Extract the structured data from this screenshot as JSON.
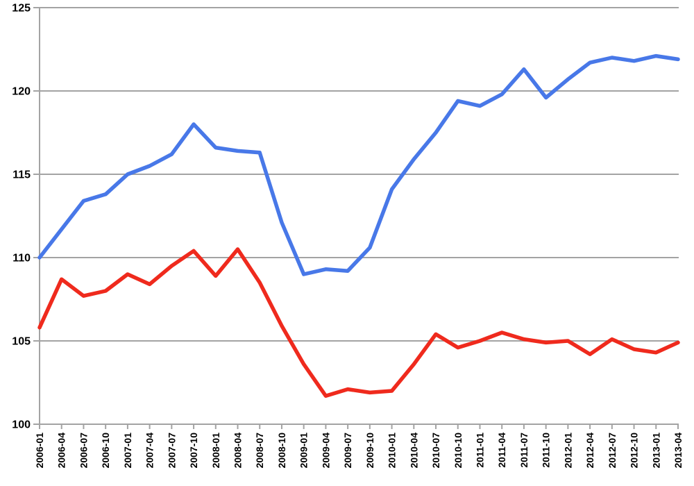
{
  "chart_data": {
    "type": "line",
    "title": "",
    "xlabel": "",
    "ylabel": "",
    "legend_position": "none",
    "grid": "horizontal",
    "ylim": [
      100,
      125
    ],
    "y_ticks": [
      100,
      105,
      110,
      115,
      120,
      125
    ],
    "categories": [
      "2006-01",
      "2006-04",
      "2006-07",
      "2006-10",
      "2007-01",
      "2007-04",
      "2007-07",
      "2007-10",
      "2008-01",
      "2008-04",
      "2008-07",
      "2008-10",
      "2009-01",
      "2009-04",
      "2009-07",
      "2009-10",
      "2010-01",
      "2010-04",
      "2010-07",
      "2010-10",
      "2011-01",
      "2011-04",
      "2011-07",
      "2011-10",
      "2012-01",
      "2012-04",
      "2012-07",
      "2012-10",
      "2013-01",
      "2013-04"
    ],
    "series": [
      {
        "name": "blue-line",
        "color": "#4878E8",
        "values": [
          110.0,
          111.7,
          113.4,
          113.8,
          115.0,
          115.5,
          116.2,
          118.0,
          116.6,
          116.4,
          116.3,
          112.1,
          109.0,
          109.3,
          109.2,
          110.6,
          114.1,
          115.9,
          117.5,
          119.4,
          119.1,
          119.8,
          121.3,
          119.6,
          120.7,
          121.7,
          122.0,
          121.8,
          122.1,
          121.9
        ]
      },
      {
        "name": "red-line",
        "color": "#EF2A1D",
        "values": [
          105.8,
          108.7,
          107.7,
          108.0,
          109.0,
          108.4,
          109.5,
          110.4,
          108.9,
          110.5,
          108.5,
          105.9,
          103.6,
          101.7,
          102.1,
          101.9,
          102.0,
          103.6,
          105.4,
          104.6,
          105.0,
          105.5,
          105.1,
          104.9,
          105.0,
          104.2,
          105.1,
          104.5,
          104.3,
          104.9
        ]
      }
    ]
  },
  "styles": {
    "background": "#FFFFFF",
    "gridline_color": "#A3A3A3",
    "axis_color": "#A3A3A3",
    "tick_color": "#A3A3A3",
    "tick_label_color": "#000000"
  }
}
